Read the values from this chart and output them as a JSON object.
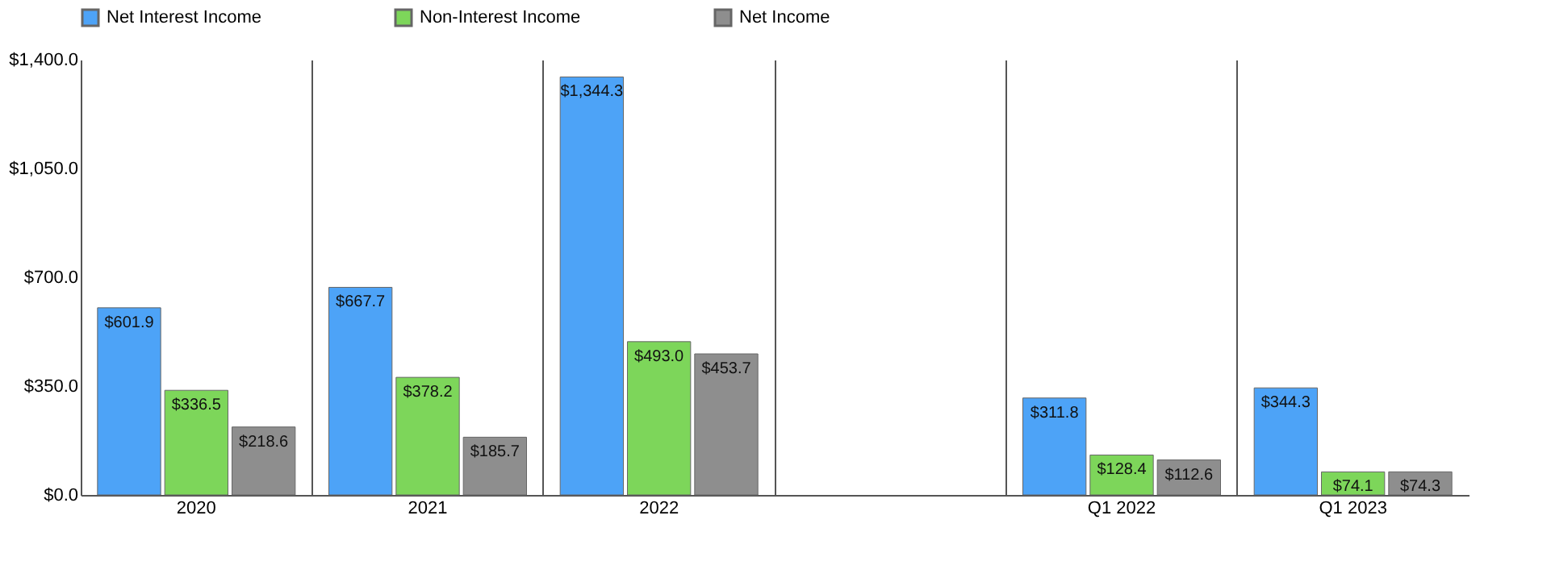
{
  "chart_data": {
    "type": "bar",
    "categories": [
      "2020",
      "2021",
      "2022",
      null,
      "Q1 2022",
      "Q1 2023"
    ],
    "series": [
      {
        "name": "Net Interest Income",
        "color": "#4da3f7",
        "values": [
          601.9,
          667.7,
          1344.3,
          null,
          311.8,
          344.3
        ],
        "value_labels": [
          "$601.9",
          "$667.7",
          "$1,344.3",
          null,
          "$311.8",
          "$344.3"
        ]
      },
      {
        "name": "Non-Interest Income",
        "color": "#7dd65a",
        "values": [
          336.5,
          378.2,
          493.0,
          null,
          128.4,
          74.1
        ],
        "value_labels": [
          "$336.5",
          "$378.2",
          "$493.0",
          null,
          "$128.4",
          "$74.1"
        ]
      },
      {
        "name": "Net Income",
        "color": "#8e8e8e",
        "values": [
          218.6,
          185.7,
          453.7,
          null,
          112.6,
          74.3
        ],
        "value_labels": [
          "$218.6",
          "$185.7",
          "$453.7",
          null,
          "$112.6",
          "$74.3"
        ]
      }
    ],
    "ylim": [
      0,
      1400
    ],
    "yticks": [
      {
        "value": 0,
        "label": "$0.0"
      },
      {
        "value": 350,
        "label": "$350.0"
      },
      {
        "value": 700,
        "label": "$700.0"
      },
      {
        "value": 1050,
        "label": "$1,050.0"
      },
      {
        "value": 1400,
        "label": "$1,400.0"
      }
    ],
    "grid": "x",
    "legend": "top"
  }
}
